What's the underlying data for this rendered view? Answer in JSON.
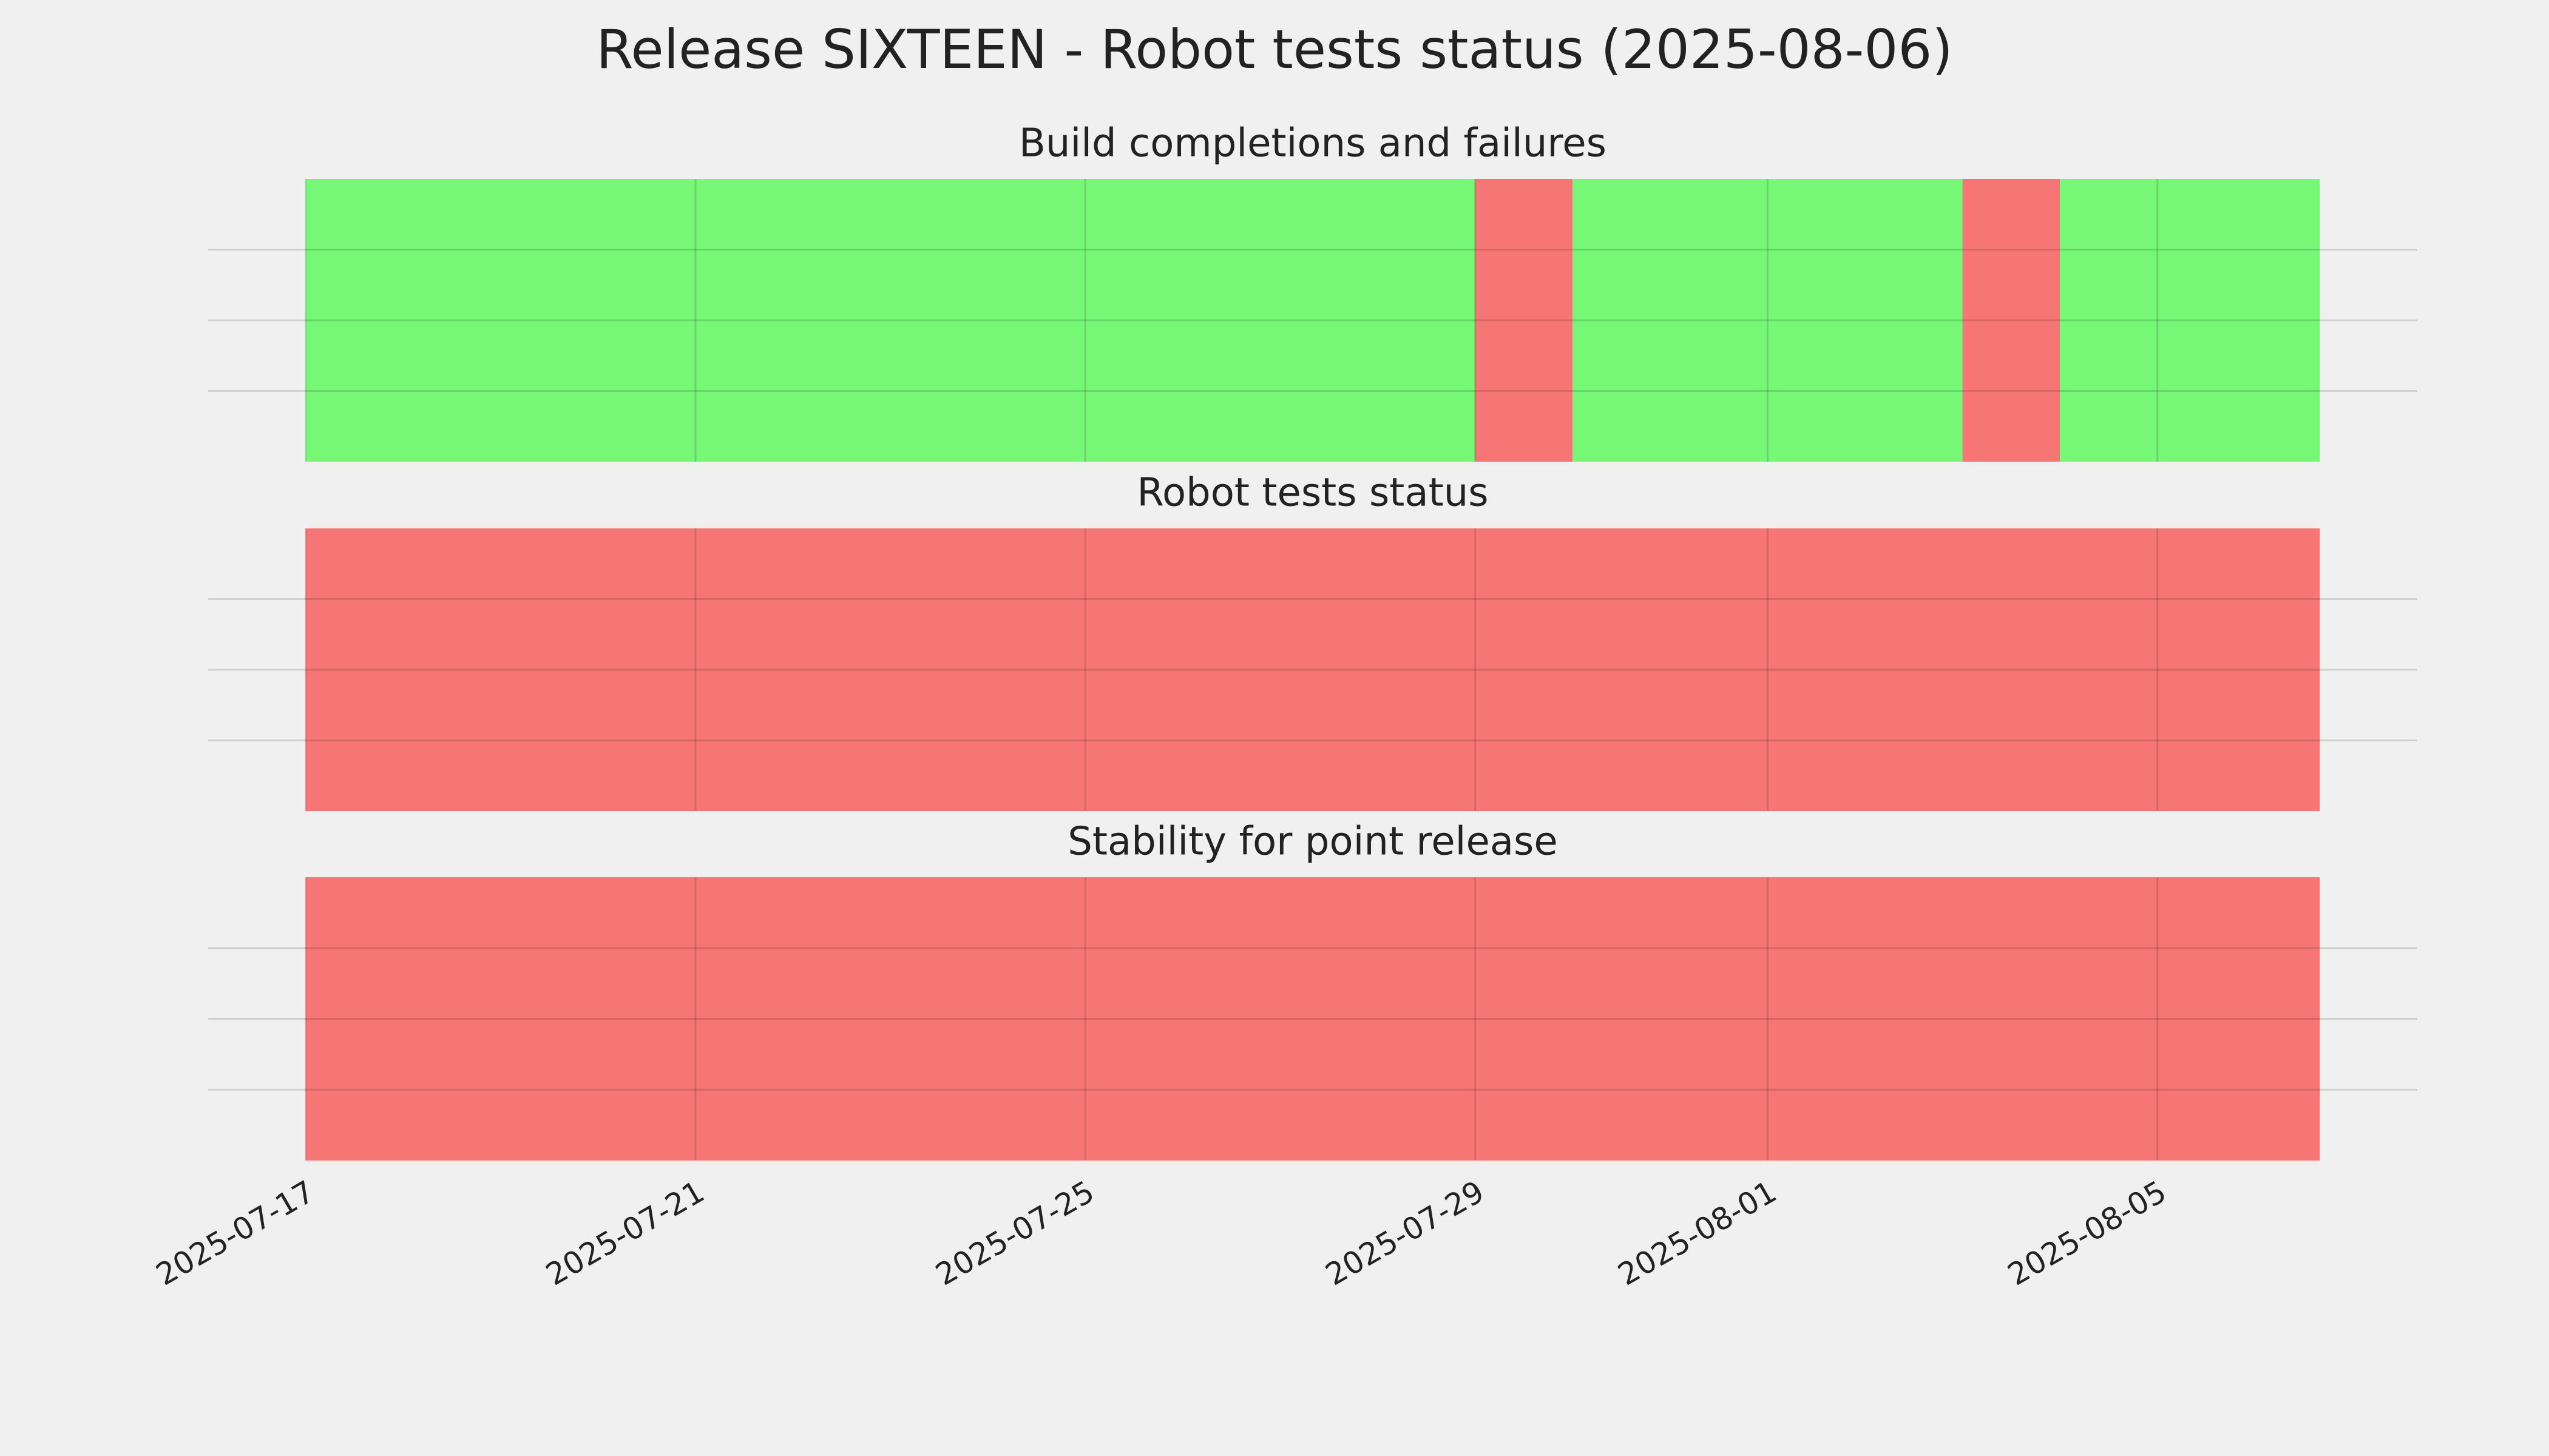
{
  "title": "Release SIXTEEN - Robot tests status (2025-08-06)",
  "chart_data": [
    {
      "type": "timeline",
      "title": "Build completions and failures",
      "segments": [
        {
          "start": "2025-07-17T00:00",
          "end": "2025-07-29T00:00",
          "color": "#76f776"
        },
        {
          "start": "2025-07-29T00:00",
          "end": "2025-07-30T00:00",
          "color": "#f67676"
        },
        {
          "start": "2025-07-30T00:00",
          "end": "2025-08-03T00:00",
          "color": "#76f776"
        },
        {
          "start": "2025-08-03T00:00",
          "end": "2025-08-04T00:00",
          "color": "#f67676"
        },
        {
          "start": "2025-08-04T00:00",
          "end": "2025-08-06T16:00",
          "color": "#76f776"
        }
      ],
      "xlim": [
        "2025-07-16T00:00",
        "2025-08-07T16:00"
      ],
      "xticks": [
        "2025-07-17",
        "2025-07-21",
        "2025-07-25",
        "2025-07-29",
        "2025-08-01",
        "2025-08-05"
      ],
      "ylim": [
        0,
        1
      ],
      "yticks": [
        0.25,
        0.5,
        0.75
      ],
      "grid": true
    },
    {
      "type": "timeline",
      "title": "Robot tests status",
      "segments": [
        {
          "start": "2025-07-17T00:00",
          "end": "2025-08-06T16:00",
          "color": "#f67676"
        }
      ],
      "xlim": [
        "2025-07-16T00:00",
        "2025-08-07T16:00"
      ],
      "xticks": [
        "2025-07-17",
        "2025-07-21",
        "2025-07-25",
        "2025-07-29",
        "2025-08-01",
        "2025-08-05"
      ],
      "ylim": [
        0,
        1
      ],
      "yticks": [
        0.25,
        0.5,
        0.75
      ],
      "grid": true
    },
    {
      "type": "timeline",
      "title": "Stability for point release",
      "segments": [
        {
          "start": "2025-07-17T00:00",
          "end": "2025-08-06T16:00",
          "color": "#f67676"
        }
      ],
      "xlim": [
        "2025-07-16T00:00",
        "2025-08-07T16:00"
      ],
      "xticks": [
        "2025-07-17",
        "2025-07-21",
        "2025-07-25",
        "2025-07-29",
        "2025-08-01",
        "2025-08-05"
      ],
      "ylim": [
        0,
        1
      ],
      "yticks": [
        0.25,
        0.5,
        0.75
      ],
      "grid": true
    }
  ]
}
